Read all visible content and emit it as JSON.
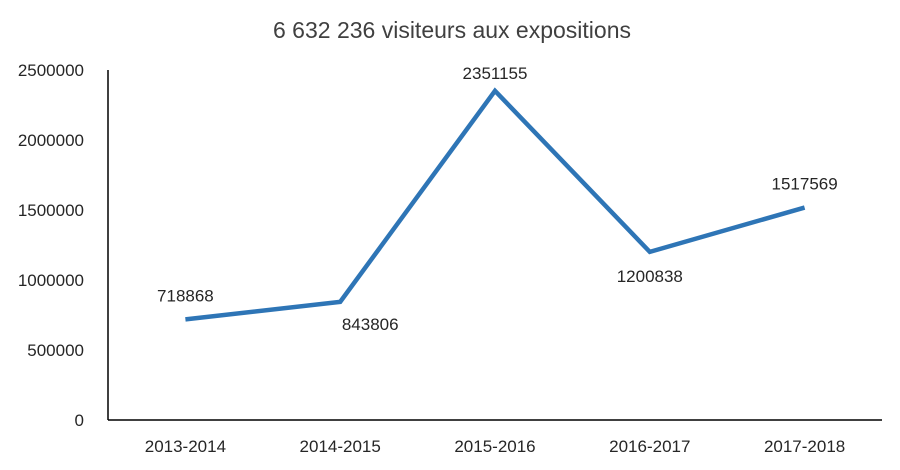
{
  "chart_data": {
    "type": "line",
    "title": "6 632 236 visiteurs aux expositions",
    "xlabel": "",
    "ylabel": "",
    "categories": [
      "2013-2014",
      "2014-2015",
      "2015-2016",
      "2016-2017",
      "2017-2018"
    ],
    "series": [
      {
        "values": [
          718868,
          843806,
          2351155,
          1200838,
          1517569
        ],
        "color": "#2E75B6"
      }
    ],
    "data_labels": [
      "718868",
      "843806",
      "2351155",
      "1200838",
      "1517569"
    ],
    "data_label_positions": [
      "above",
      "below",
      "above",
      "below",
      "above"
    ],
    "ylim": [
      0,
      2500000
    ],
    "yticks": [
      0,
      500000,
      1000000,
      1500000,
      2000000,
      2500000
    ],
    "ytick_labels": [
      "0",
      "500000",
      "1000000",
      "1500000",
      "2000000",
      "2500000"
    ],
    "grid": false,
    "legend": "none",
    "axis_color": "#000000"
  }
}
